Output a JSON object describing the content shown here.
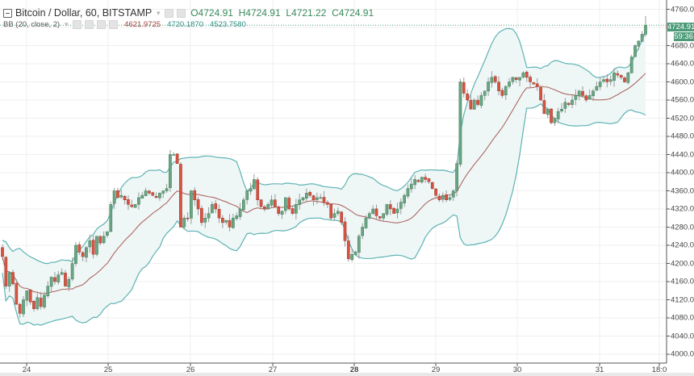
{
  "legend": {
    "title": "Bitcoin / Dollar, 60, BITSTAMP",
    "open_label": "O",
    "open": "4724.91",
    "high_label": "H",
    "high": "4724.91",
    "low_label": "L",
    "low": "4721.22",
    "close_label": "C",
    "close": "4724.91",
    "indicator_name": "BB (20, close, 2)",
    "indicator_values": [
      "4621.9725",
      "4720.1870",
      "4523.7580"
    ]
  },
  "price_tag": {
    "last_price": "4724.91",
    "countdown": "59:36"
  },
  "colors": {
    "up": "#6ba583",
    "down": "#d75442",
    "band": "#5fb3b3",
    "basis": "#a85a55",
    "fill": "#eef6f6",
    "grid": "#efefef",
    "tag": "#4d9a79"
  },
  "chart_data": {
    "type": "candlestick",
    "title": "Bitcoin / Dollar, 60, BITSTAMP",
    "indicator": "Bollinger Bands (20, close, 2)",
    "xlabel": "",
    "ylabel": "",
    "x_ticks": [
      "24",
      "25",
      "26",
      "27",
      "28",
      "29",
      "30",
      "31",
      "18:0"
    ],
    "y_ticks": [
      "4760.00",
      "4720.00",
      "4680.00",
      "4640.00",
      "4600.00",
      "4560.00",
      "4520.00",
      "4480.00",
      "4440.00",
      "4400.00",
      "4360.00",
      "4320.00",
      "4280.00",
      "4240.00",
      "4200.00",
      "4160.00",
      "4120.00",
      "4080.00",
      "4040.00",
      "4000.00"
    ],
    "ylim": [
      3980,
      4770
    ],
    "grid": true,
    "last": {
      "open": 4724.91,
      "high": 4724.91,
      "low": 4721.22,
      "close": 4724.91
    },
    "bb_last": {
      "basis": 4621.9725,
      "upper": 4720.187,
      "lower": 4523.758
    },
    "closes": [
      4215,
      4150,
      4180,
      4155,
      4110,
      4090,
      4120,
      4140,
      4115,
      4100,
      4125,
      4105,
      4130,
      4150,
      4170,
      4160,
      4175,
      4180,
      4150,
      4165,
      4200,
      4240,
      4225,
      4215,
      4235,
      4250,
      4220,
      4260,
      4245,
      4260,
      4270,
      4330,
      4360,
      4345,
      4350,
      4340,
      4330,
      4325,
      4330,
      4345,
      4350,
      4360,
      4355,
      4350,
      4345,
      4355,
      4360,
      4365,
      4440,
      4440,
      4420,
      4280,
      4300,
      4300,
      4360,
      4340,
      4320,
      4290,
      4300,
      4310,
      4330,
      4320,
      4300,
      4290,
      4295,
      4280,
      4300,
      4305,
      4320,
      4340,
      4360,
      4365,
      4385,
      4340,
      4325,
      4320,
      4330,
      4340,
      4325,
      4310,
      4315,
      4345,
      4320,
      4310,
      4330,
      4340,
      4345,
      4355,
      4350,
      4340,
      4345,
      4345,
      4335,
      4330,
      4300,
      4310,
      4315,
      4290,
      4250,
      4210,
      4220,
      4225,
      4260,
      4280,
      4300,
      4310,
      4320,
      4305,
      4300,
      4310,
      4330,
      4320,
      4310,
      4320,
      4335,
      4350,
      4365,
      4375,
      4385,
      4380,
      4390,
      4385,
      4380,
      4365,
      4350,
      4340,
      4350,
      4340,
      4345,
      4360,
      4420,
      4600,
      4575,
      4560,
      4540,
      4560,
      4550,
      4570,
      4580,
      4600,
      4610,
      4600,
      4580,
      4570,
      4590,
      4600,
      4610,
      4605,
      4610,
      4620,
      4610,
      4600,
      4595,
      4590,
      4560,
      4530,
      4540,
      4510,
      4520,
      4535,
      4540,
      4555,
      4550,
      4560,
      4570,
      4580,
      4570,
      4560,
      4570,
      4580,
      4590,
      4600,
      4605,
      4600,
      4605,
      4620,
      4615,
      4610,
      4600,
      4620,
      4655,
      4680,
      4690,
      4705,
      4724.91
    ]
  }
}
